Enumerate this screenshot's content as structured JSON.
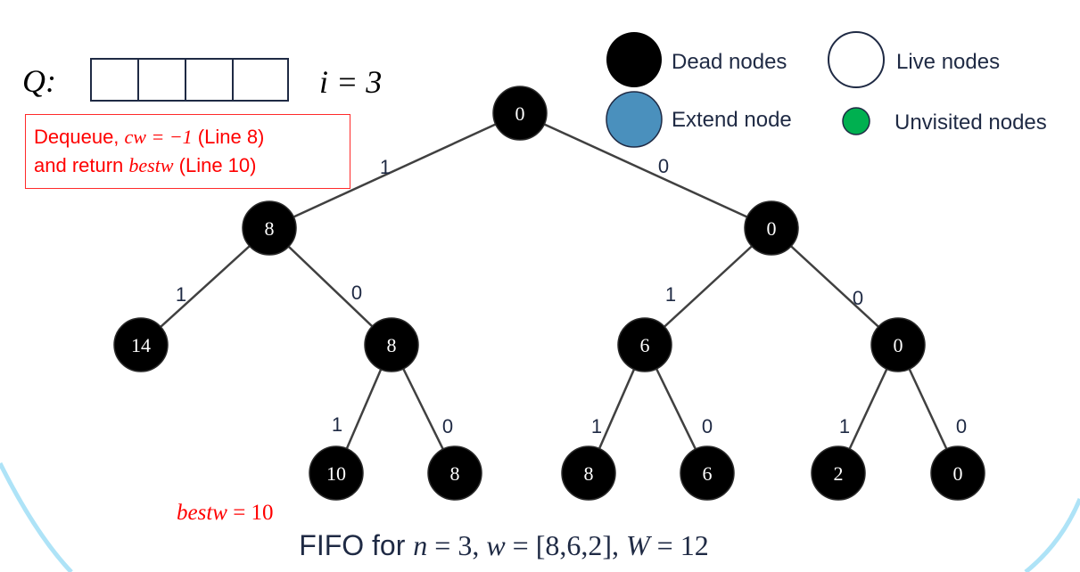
{
  "queue": {
    "label": "Q:",
    "cells": [
      "",
      "",
      "",
      ""
    ]
  },
  "iteration": {
    "text": "i = 3"
  },
  "note": {
    "line1_prefix": "Dequeue, ",
    "line1_math": "cw = −1",
    "line1_suffix": " (Line 8)",
    "line2_prefix": "and return ",
    "line2_math": "bestw",
    "line2_suffix": " (Line 10)"
  },
  "legend": {
    "dead": "Dead nodes",
    "live": "Live nodes",
    "extend": "Extend node",
    "unvisited": "Unvisited nodes"
  },
  "colors": {
    "dead": "#000000",
    "live": "#ffffff",
    "extend": "#4a90bd",
    "unvisited": "#00b050",
    "accent": "#ff0000",
    "edge": "#404040",
    "decor_arc": "#aee3f7"
  },
  "tree": {
    "nodes": [
      {
        "id": "root",
        "value": "0"
      },
      {
        "id": "n-l",
        "value": "8"
      },
      {
        "id": "n-r",
        "value": "0"
      },
      {
        "id": "n-ll",
        "value": "14"
      },
      {
        "id": "n-lr",
        "value": "8"
      },
      {
        "id": "n-rl",
        "value": "6"
      },
      {
        "id": "n-rr",
        "value": "0"
      },
      {
        "id": "n-lrl",
        "value": "10"
      },
      {
        "id": "n-lrr",
        "value": "8"
      },
      {
        "id": "n-rll",
        "value": "8"
      },
      {
        "id": "n-rlr",
        "value": "6"
      },
      {
        "id": "n-rrl",
        "value": "2"
      },
      {
        "id": "n-rrr",
        "value": "0"
      }
    ],
    "edges": [
      {
        "from": "root",
        "to": "n-l",
        "label": "1"
      },
      {
        "from": "root",
        "to": "n-r",
        "label": "0"
      },
      {
        "from": "n-l",
        "to": "n-ll",
        "label": "1"
      },
      {
        "from": "n-l",
        "to": "n-lr",
        "label": "0"
      },
      {
        "from": "n-r",
        "to": "n-rl",
        "label": "1"
      },
      {
        "from": "n-r",
        "to": "n-rr",
        "label": "0"
      },
      {
        "from": "n-lr",
        "to": "n-lrl",
        "label": "1"
      },
      {
        "from": "n-lr",
        "to": "n-lrr",
        "label": "0"
      },
      {
        "from": "n-rl",
        "to": "n-rll",
        "label": "1"
      },
      {
        "from": "n-rl",
        "to": "n-rlr",
        "label": "0"
      },
      {
        "from": "n-rr",
        "to": "n-rrl",
        "label": "1"
      },
      {
        "from": "n-rr",
        "to": "n-rrr",
        "label": "0"
      }
    ]
  },
  "bestw": {
    "name": "bestw",
    "rest": " = 10"
  },
  "caption": {
    "prefix": "FIFO for ",
    "n": "n",
    "n_rest": " = 3, ",
    "w": "w",
    "w_rest": " = [8,6,2], ",
    "W": "W",
    "W_rest": " = 12"
  }
}
